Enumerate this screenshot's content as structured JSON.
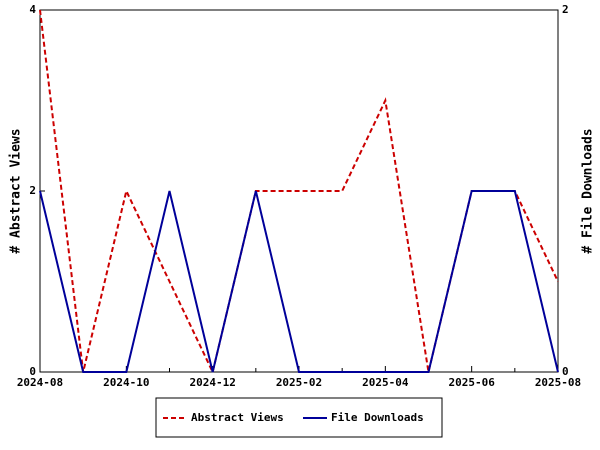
{
  "chart_data": {
    "type": "line",
    "categories": [
      "2024-08",
      null,
      "2024-10",
      null,
      "2024-12",
      null,
      "2025-02",
      null,
      "2025-04",
      null,
      "2025-06",
      null,
      "2025-08"
    ],
    "y_label": "# Abstract Views",
    "y2_label": "# File Downloads",
    "ylim": [
      0,
      4
    ],
    "yticks": [
      0,
      2,
      4
    ],
    "y2lim": [
      0,
      2
    ],
    "y2ticks": [
      0,
      2
    ],
    "legend": "bottom",
    "series": [
      {
        "name": "Abstract Views",
        "color": "#cc0000",
        "dashed": true,
        "values": [
          4,
          0,
          2,
          1,
          0,
          2,
          2,
          2,
          3,
          0,
          2,
          2,
          1
        ]
      },
      {
        "name": "File Downloads",
        "color": "#000099",
        "dashed": false,
        "axis": "y2",
        "values": [
          1,
          0,
          0,
          1,
          0,
          1,
          0,
          0,
          0,
          0,
          1,
          1,
          0
        ]
      }
    ]
  }
}
